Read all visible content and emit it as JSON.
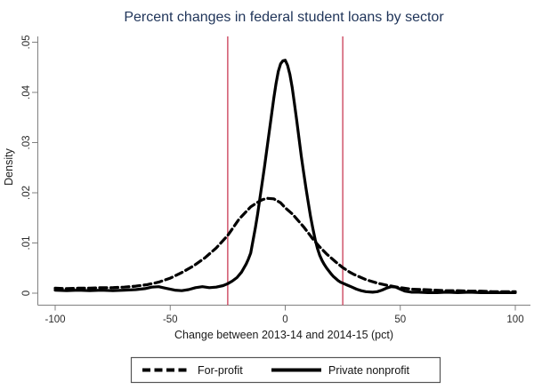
{
  "chart_data": {
    "type": "line",
    "title": "Percent changes in federal student loans by sector",
    "xlabel": "Change between 2013-14 and 2014-15 (pct)",
    "ylabel": "Density",
    "xlim": [
      -100,
      100
    ],
    "ylim": [
      0,
      0.05
    ],
    "grid": false,
    "x_ticks": [
      {
        "v": -100,
        "label": "-100"
      },
      {
        "v": -50,
        "label": "-50"
      },
      {
        "v": 0,
        "label": "0"
      },
      {
        "v": 50,
        "label": "50"
      },
      {
        "v": 100,
        "label": "100"
      }
    ],
    "y_ticks": [
      {
        "v": 0,
        "label": "0"
      },
      {
        "v": 0.01,
        "label": ".01"
      },
      {
        "v": 0.02,
        "label": ".02"
      },
      {
        "v": 0.03,
        "label": ".03"
      },
      {
        "v": 0.04,
        "label": ".04"
      },
      {
        "v": 0.05,
        "label": ".05"
      }
    ],
    "ref_lines": {
      "x_values": [
        -25,
        25
      ],
      "color": "#cd4961"
    },
    "legend": {
      "position": "bottom-center",
      "border": true
    },
    "series": [
      {
        "name": "For-profit",
        "style": "dashed",
        "color": "#000000",
        "x": [
          -100,
          -95,
          -90,
          -85,
          -80,
          -75,
          -70,
          -65,
          -60,
          -55,
          -50,
          -45,
          -40,
          -35,
          -30,
          -25,
          -20,
          -15,
          -12,
          -10,
          -8,
          -5,
          -2,
          0,
          3,
          5,
          8,
          10,
          12,
          15,
          18,
          20,
          22,
          25,
          28,
          30,
          35,
          40,
          45,
          50,
          55,
          60,
          65,
          70,
          75,
          80,
          85,
          90,
          95,
          100
        ],
        "y": [
          0.001,
          0.0009,
          0.001,
          0.001,
          0.0011,
          0.0011,
          0.0012,
          0.0014,
          0.0017,
          0.0022,
          0.003,
          0.0041,
          0.0054,
          0.007,
          0.009,
          0.0115,
          0.0148,
          0.0172,
          0.0181,
          0.0186,
          0.0189,
          0.0188,
          0.018,
          0.017,
          0.0158,
          0.0148,
          0.0132,
          0.012,
          0.0108,
          0.0092,
          0.0078,
          0.007,
          0.0062,
          0.0051,
          0.0042,
          0.0037,
          0.0027,
          0.002,
          0.0015,
          0.0011,
          0.0008,
          0.0007,
          0.0006,
          0.0005,
          0.0005,
          0.0004,
          0.0004,
          0.0003,
          0.0003,
          0.0003
        ]
      },
      {
        "name": "Private nonprofit",
        "style": "solid",
        "color": "#000000",
        "x": [
          -100,
          -95,
          -90,
          -85,
          -80,
          -75,
          -70,
          -65,
          -61,
          -58,
          -55,
          -52,
          -48,
          -45,
          -42,
          -39,
          -36,
          -33,
          -30,
          -27,
          -25,
          -23,
          -21,
          -19,
          -17,
          -16,
          -15,
          -14,
          -13,
          -12,
          -11,
          -10,
          -9,
          -8,
          -7,
          -6,
          -5,
          -4,
          -3,
          -2,
          -1,
          0,
          1,
          2,
          3,
          4,
          5,
          6,
          7,
          8,
          9,
          10,
          11,
          12,
          13,
          14,
          15,
          16,
          17,
          18,
          19,
          20,
          21,
          22,
          23,
          24,
          25,
          27,
          29,
          31,
          33,
          35,
          38,
          40,
          42,
          44,
          46,
          48,
          50,
          52,
          55,
          58,
          62,
          66,
          70,
          75,
          80,
          85,
          90,
          95,
          100
        ],
        "y": [
          0.0006,
          0.0005,
          0.0006,
          0.0005,
          0.0006,
          0.0005,
          0.0006,
          0.0007,
          0.0009,
          0.0012,
          0.0013,
          0.001,
          0.0006,
          0.0005,
          0.0007,
          0.0011,
          0.0013,
          0.0011,
          0.0012,
          0.0015,
          0.0019,
          0.0024,
          0.0031,
          0.0042,
          0.0058,
          0.0068,
          0.008,
          0.0105,
          0.013,
          0.0158,
          0.019,
          0.022,
          0.0252,
          0.0286,
          0.032,
          0.0354,
          0.0388,
          0.0418,
          0.0442,
          0.0457,
          0.0463,
          0.0464,
          0.0454,
          0.0436,
          0.041,
          0.0378,
          0.0344,
          0.0308,
          0.0272,
          0.024,
          0.0209,
          0.018,
          0.0153,
          0.0129,
          0.0107,
          0.0089,
          0.0075,
          0.0065,
          0.0057,
          0.005,
          0.0044,
          0.0038,
          0.0033,
          0.0029,
          0.0025,
          0.0022,
          0.002,
          0.0016,
          0.0012,
          0.0008,
          0.0005,
          0.0003,
          0.0002,
          0.0003,
          0.0006,
          0.001,
          0.0013,
          0.0012,
          0.0008,
          0.0004,
          0.0002,
          0.0002,
          0.0001,
          0.0001,
          0.0002,
          0.0001,
          0.0002,
          0.0001,
          0.0001,
          0.0001,
          0.0001
        ]
      }
    ]
  }
}
